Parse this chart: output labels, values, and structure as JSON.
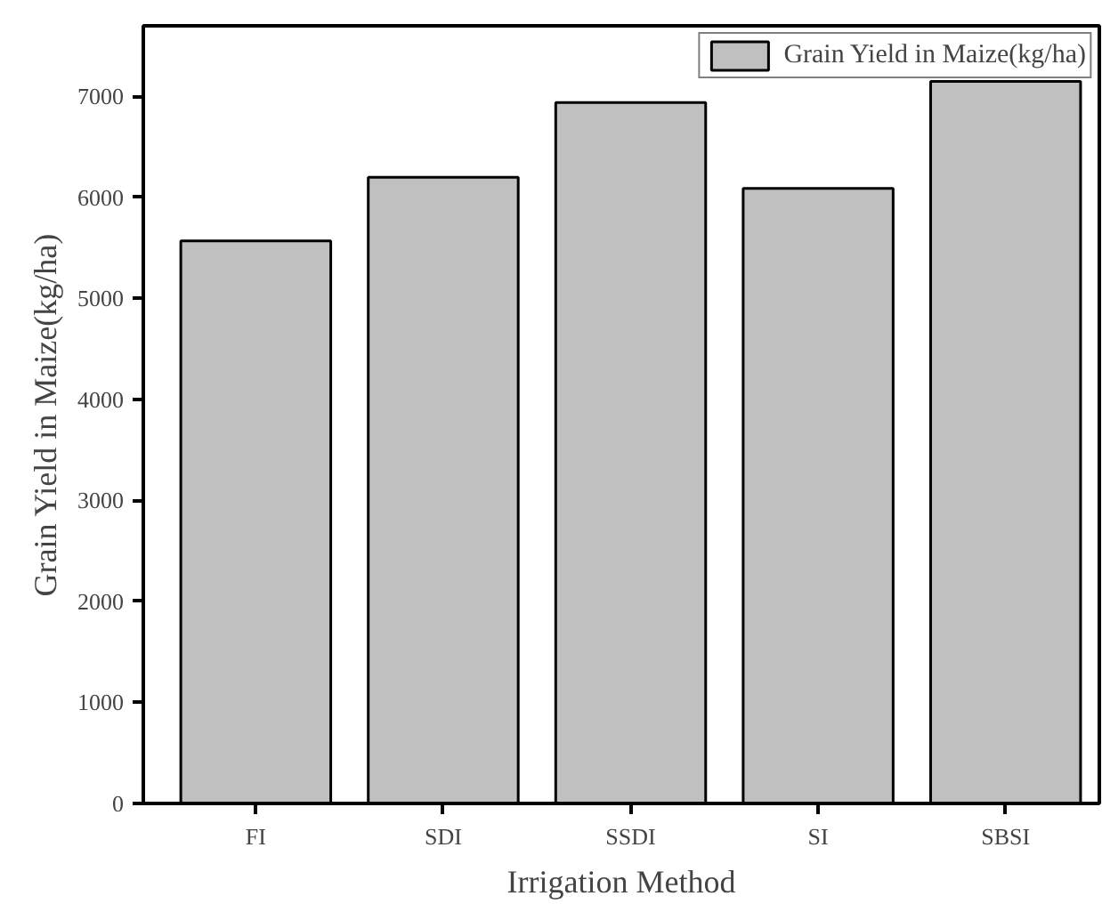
{
  "chart_data": {
    "type": "bar",
    "xlabel": "Irrigation Method",
    "ylabel": "Grain Yield in Maize(kg/ha)",
    "categories": [
      "FI",
      "SDI",
      "SSDI",
      "SI",
      "SBSI"
    ],
    "series": [
      {
        "name": "Grain Yield in Maize(kg/ha)",
        "color": "#c0c0c0",
        "values": [
          5570,
          6200,
          6940,
          6090,
          7150
        ]
      }
    ],
    "ylim": [
      0,
      7700
    ],
    "yticks": [
      0,
      1000,
      2000,
      3000,
      4000,
      5000,
      6000,
      7000
    ],
    "grid": false,
    "legend": "top right"
  }
}
